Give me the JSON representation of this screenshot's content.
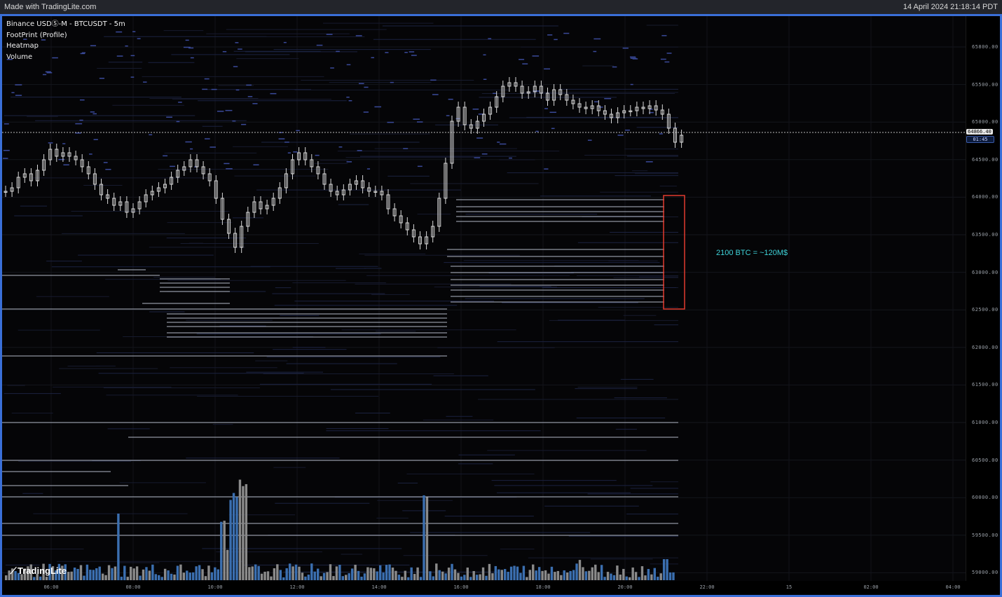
{
  "header": {
    "made_with": "Made with TradingLite.com",
    "timestamp": "14 April 2024 21:18:14 PDT"
  },
  "chart_info": {
    "symbol": "Binance USDⓈ-M - BTCUSDT - 5m",
    "layers": [
      "FootPrint (Profile)",
      "Heatmap",
      "Volume"
    ]
  },
  "chart_data": {
    "type": "candlestick",
    "y_ticks": [
      "65800.00",
      "65500.00",
      "65000.00",
      "64500.00",
      "64000.00",
      "63500.00",
      "63000.00",
      "62500.00",
      "62000.00",
      "61500.00",
      "61000.00",
      "60500.00",
      "60000.00",
      "59500.00",
      "59000.00"
    ],
    "x_ticks": [
      "06:00",
      "08:00",
      "10:00",
      "12:00",
      "14:00",
      "16:00",
      "18:00",
      "20:00",
      "22:00",
      "15",
      "02:00",
      "04:00"
    ],
    "last_price": "64866.40",
    "countdown": "01:45",
    "annotation": "2100 BTC = ~120M$",
    "colors": {
      "up_volume": "#3b6fb0",
      "down_volume": "#8a8a8a",
      "candle": "#d8d8d8",
      "box": "#e23b2e",
      "annotation": "#3fd3d9"
    }
  },
  "branding": {
    "logo_text": "TradingLite"
  }
}
